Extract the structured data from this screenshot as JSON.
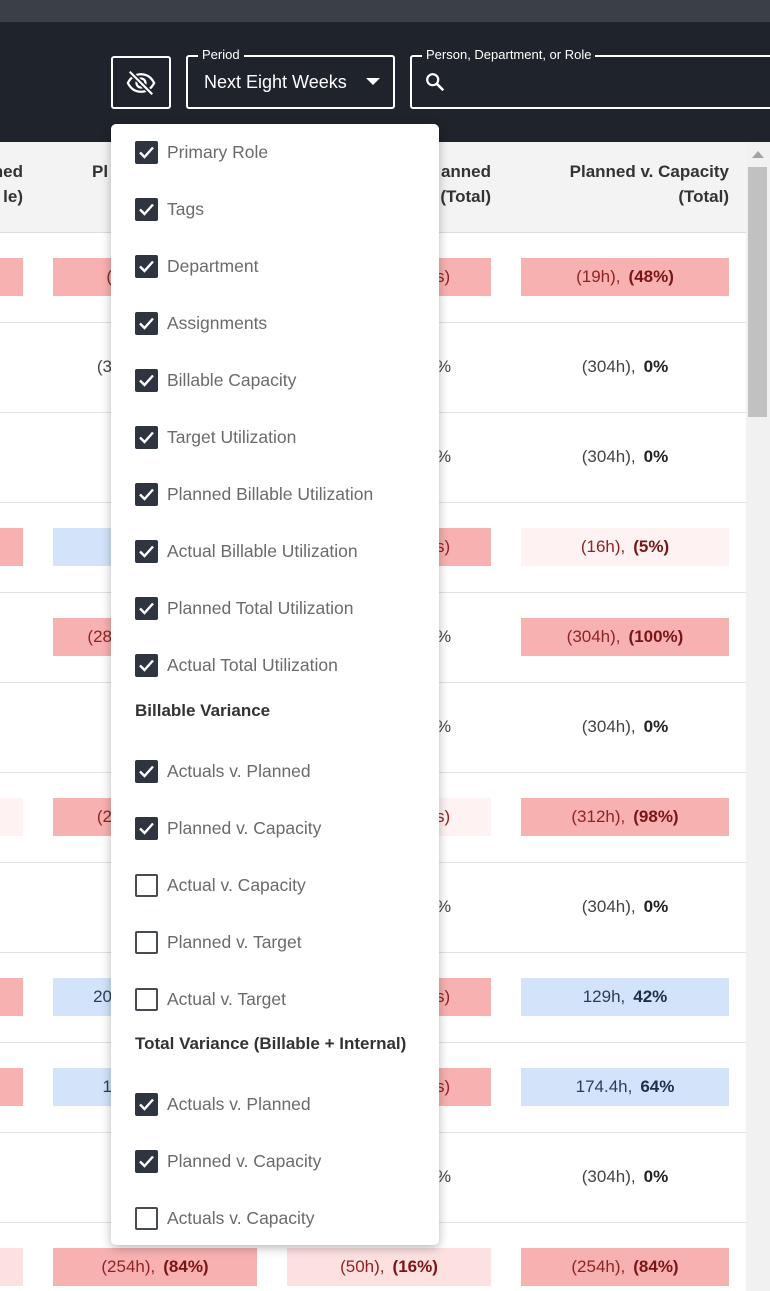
{
  "header": {
    "period": {
      "label": "Period",
      "value": "Next Eight Weeks"
    },
    "search": {
      "label": "Person, Department, or Role"
    }
  },
  "table": {
    "columns": [
      [
        "ned",
        "le)"
      ],
      [
        "Pl"
      ],
      [
        "anned",
        "(Total)"
      ],
      [
        "Planned v. Capacity",
        "(Total)"
      ]
    ],
    "rows": [
      [
        {
          "tone": "red"
        },
        {
          "tone": "red",
          "parts": [
            "("
          ]
        },
        {
          "tone": "red",
          "parts": [
            "s)"
          ]
        },
        {
          "tone": "red",
          "parts": [
            "(19h),",
            "(48%)"
          ]
        }
      ],
      [
        {},
        {
          "parts": [
            "(3"
          ]
        },
        {
          "parts": [
            "%"
          ]
        },
        {
          "parts": [
            "(304h),",
            "0%"
          ]
        }
      ],
      [
        {},
        {},
        {
          "parts": [
            "%"
          ]
        },
        {
          "parts": [
            "(304h),",
            "0%"
          ]
        }
      ],
      [
        {
          "tone": "red"
        },
        {
          "tone": "blue"
        },
        {
          "tone": "red",
          "parts": [
            "s)"
          ]
        },
        {
          "tone": "pale",
          "parts": [
            "(16h),",
            "(5%)"
          ]
        }
      ],
      [
        {},
        {
          "tone": "red",
          "parts": [
            "(28"
          ]
        },
        {
          "parts": [
            "%"
          ]
        },
        {
          "tone": "red",
          "parts": [
            "(304h),",
            "(100%)"
          ]
        }
      ],
      [
        {},
        {},
        {
          "parts": [
            "%"
          ]
        },
        {
          "parts": [
            "(304h),",
            "0%"
          ]
        }
      ],
      [
        {
          "tone": "pale"
        },
        {
          "tone": "red",
          "parts": [
            "(2"
          ]
        },
        {
          "tone": "pale",
          "parts": [
            "s)"
          ]
        },
        {
          "tone": "red",
          "parts": [
            "(312h),",
            "(98%)"
          ]
        }
      ],
      [
        {},
        {},
        {
          "parts": [
            "%"
          ]
        },
        {
          "parts": [
            "(304h),",
            "0%"
          ]
        }
      ],
      [
        {
          "tone": "red"
        },
        {
          "tone": "blue",
          "parts": [
            "20"
          ]
        },
        {
          "tone": "red",
          "parts": [
            "s)"
          ]
        },
        {
          "tone": "blue",
          "parts": [
            "129h,",
            "42%"
          ]
        }
      ],
      [
        {
          "tone": "red"
        },
        {
          "tone": "blue",
          "parts": [
            "1"
          ]
        },
        {
          "tone": "red",
          "parts": [
            "s)"
          ]
        },
        {
          "tone": "blue",
          "parts": [
            "174.4h,",
            "64%"
          ]
        }
      ],
      [
        {},
        {},
        {
          "parts": [
            "%"
          ]
        },
        {
          "parts": [
            "(304h),",
            "0%"
          ]
        }
      ],
      [
        {
          "tone": "light"
        },
        {
          "tone": "red",
          "parts": [
            "(254h),",
            "(84%)"
          ]
        },
        {
          "tone": "light",
          "parts": [
            "(50h),",
            "(16%)"
          ]
        },
        {
          "tone": "red",
          "parts": [
            "(254h),",
            "(84%)"
          ]
        }
      ]
    ]
  },
  "menu": {
    "sections": [
      {
        "items": [
          {
            "label": "Primary Role",
            "checked": true
          },
          {
            "label": "Tags",
            "checked": true
          },
          {
            "label": "Department",
            "checked": true
          },
          {
            "label": "Assignments",
            "checked": true
          },
          {
            "label": "Billable Capacity",
            "checked": true
          },
          {
            "label": "Target Utilization",
            "checked": true
          },
          {
            "label": "Planned Billable Utilization",
            "checked": true
          },
          {
            "label": "Actual Billable Utilization",
            "checked": true
          },
          {
            "label": "Planned Total Utilization",
            "checked": true
          },
          {
            "label": "Actual Total Utilization",
            "checked": true
          }
        ]
      },
      {
        "title": "Billable Variance",
        "items": [
          {
            "label": "Actuals v. Planned",
            "checked": true
          },
          {
            "label": "Planned v. Capacity",
            "checked": true
          },
          {
            "label": "Actual v. Capacity",
            "checked": false
          },
          {
            "label": "Planned v. Target",
            "checked": false
          },
          {
            "label": "Actual v. Target",
            "checked": false
          }
        ]
      },
      {
        "title": "Total Variance (Billable + Internal)",
        "items": [
          {
            "label": "Actuals v. Planned",
            "checked": true
          },
          {
            "label": "Planned v. Capacity",
            "checked": true
          },
          {
            "label": "Actuals v. Capacity",
            "checked": false
          }
        ]
      }
    ]
  }
}
